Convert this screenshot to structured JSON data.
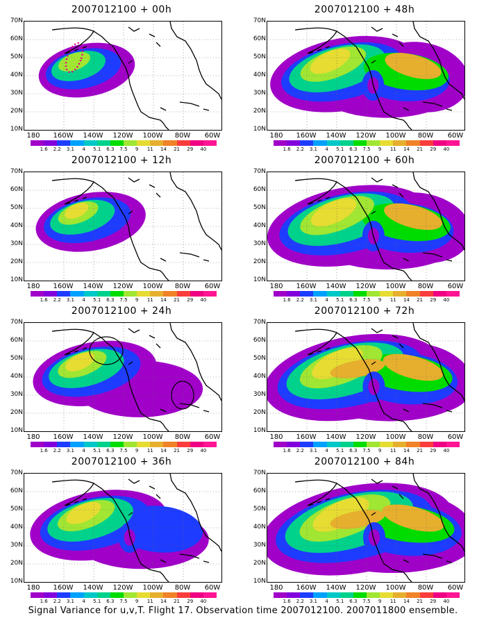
{
  "panels": [
    {
      "title": "2007012100 + 00h",
      "level": 0
    },
    {
      "title": "2007012100 + 48h",
      "level": 4
    },
    {
      "title": "2007012100 + 12h",
      "level": 1
    },
    {
      "title": "2007012100 + 60h",
      "level": 5
    },
    {
      "title": "2007012100 + 24h",
      "level": 2
    },
    {
      "title": "2007012100 + 72h",
      "level": 6
    },
    {
      "title": "2007012100 + 36h",
      "level": 3
    },
    {
      "title": "2007012100 + 84h",
      "level": 7
    }
  ],
  "lat_labels": [
    "70N",
    "60N",
    "50N",
    "40N",
    "30N",
    "20N",
    "10N"
  ],
  "lon_labels": [
    "180",
    "160W",
    "140W",
    "120W",
    "100W",
    "80W",
    "60W"
  ],
  "colorbar": {
    "labels": [
      "1.6",
      "2.2",
      "3.1",
      "4",
      "5.1",
      "6.3",
      "7.5",
      "9",
      "11",
      "14",
      "21",
      "29",
      "40"
    ],
    "colors": [
      "#a000c8",
      "#8200dc",
      "#1e3cff",
      "#00a0ff",
      "#00c8c8",
      "#00d28c",
      "#00dc00",
      "#a0e632",
      "#e6dc32",
      "#e6af2d",
      "#f08228",
      "#fa3c3c",
      "#f00082",
      "#ff1493"
    ]
  },
  "caption": "Signal Variance for u,v,T. Flight 17. Observation time 2007012100. 2007011800 ensemble."
}
